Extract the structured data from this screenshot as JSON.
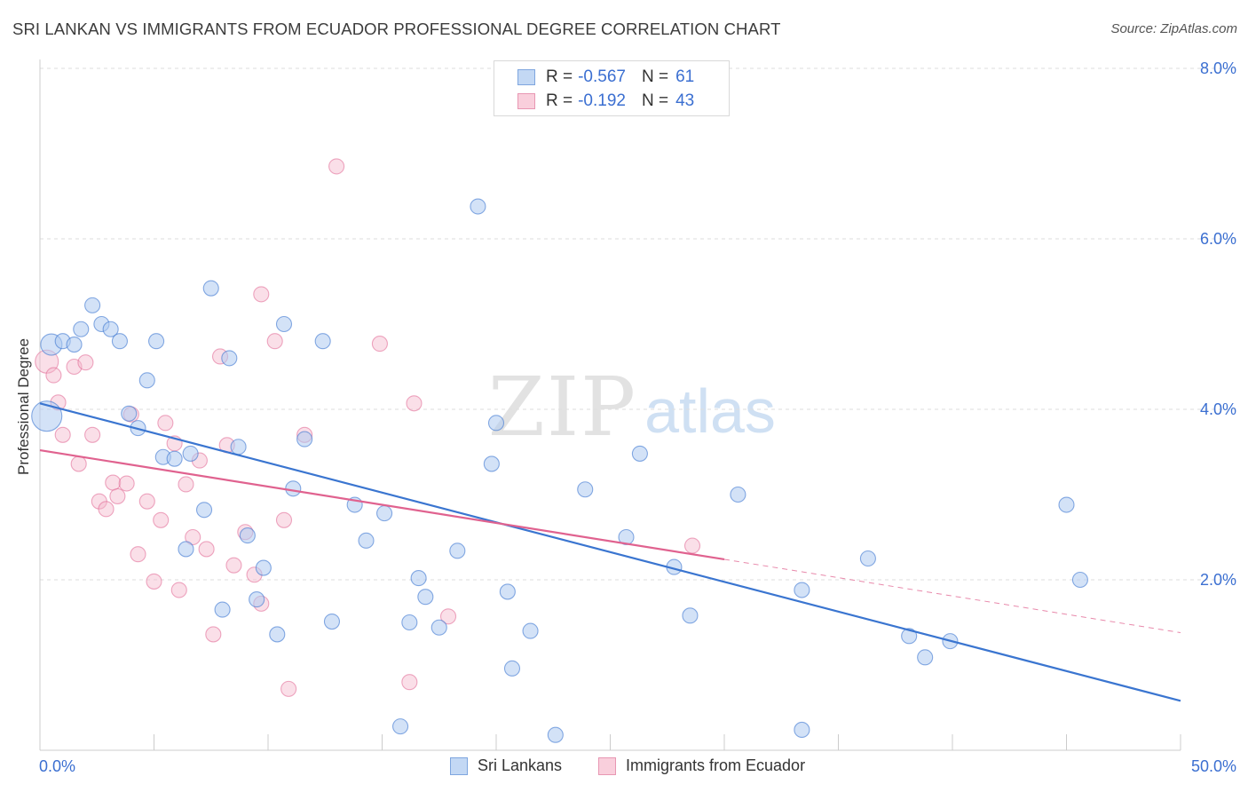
{
  "header": {
    "title": "SRI LANKAN VS IMMIGRANTS FROM ECUADOR PROFESSIONAL DEGREE CORRELATION CHART",
    "source": "Source: ZipAtlas.com"
  },
  "watermark": {
    "zip": "ZIP",
    "atlas": "atlas"
  },
  "legend": {
    "rows": [
      {
        "r_label": "R =",
        "r_value": "-0.567",
        "n_label": "N =",
        "n_value": "61"
      },
      {
        "r_label": "R =",
        "r_value": "-0.192",
        "n_label": "N =",
        "n_value": "43"
      }
    ]
  },
  "colors": {
    "blue": "#3a75d0",
    "blue_fill": "#aecbf0",
    "pink": "#e0628f",
    "pink_fill": "#f5b9cc",
    "tick_blue": "#3b6fd1",
    "grid": "#dedede"
  },
  "chart_data": {
    "type": "scatter",
    "title": "SRI LANKAN VS IMMIGRANTS FROM ECUADOR PROFESSIONAL DEGREE CORRELATION CHART",
    "xlabel": "",
    "ylabel": "Professional Degree",
    "xlim": [
      0,
      50
    ],
    "ylim": [
      0,
      8
    ],
    "x_tick_labels": [
      "0.0%",
      "50.0%"
    ],
    "y_ticks": [
      2,
      4,
      6,
      8
    ],
    "y_tick_labels": [
      "2.0%",
      "4.0%",
      "6.0%",
      "8.0%"
    ],
    "grid": true,
    "legend_position": "top-center",
    "series": [
      {
        "name": "Sri Lankans",
        "color": "#3a75d0",
        "r": -0.567,
        "n": 61,
        "trend": {
          "x": [
            0,
            50
          ],
          "y": [
            4.07,
            0.58
          ]
        },
        "points": [
          [
            0.3,
            3.92
          ],
          [
            0.5,
            4.76
          ],
          [
            1.0,
            4.8
          ],
          [
            1.5,
            4.76
          ],
          [
            1.8,
            4.94
          ],
          [
            2.3,
            5.22
          ],
          [
            2.7,
            5.0
          ],
          [
            3.1,
            4.94
          ],
          [
            3.5,
            4.8
          ],
          [
            3.9,
            3.95
          ],
          [
            4.3,
            3.78
          ],
          [
            4.7,
            4.34
          ],
          [
            5.1,
            4.8
          ],
          [
            5.4,
            3.44
          ],
          [
            5.9,
            3.42
          ],
          [
            6.4,
            2.36
          ],
          [
            6.6,
            3.48
          ],
          [
            7.2,
            2.82
          ],
          [
            7.5,
            5.42
          ],
          [
            8.0,
            1.65
          ],
          [
            8.3,
            4.6
          ],
          [
            8.7,
            3.56
          ],
          [
            9.1,
            2.52
          ],
          [
            9.5,
            1.77
          ],
          [
            9.8,
            2.14
          ],
          [
            10.4,
            1.36
          ],
          [
            10.7,
            5.0
          ],
          [
            11.1,
            3.07
          ],
          [
            11.6,
            3.65
          ],
          [
            12.4,
            4.8
          ],
          [
            12.8,
            1.51
          ],
          [
            13.8,
            2.88
          ],
          [
            14.3,
            2.46
          ],
          [
            15.1,
            2.78
          ],
          [
            15.8,
            0.28
          ],
          [
            16.2,
            1.5
          ],
          [
            16.6,
            2.02
          ],
          [
            16.9,
            1.8
          ],
          [
            17.5,
            1.44
          ],
          [
            18.3,
            2.34
          ],
          [
            19.2,
            6.38
          ],
          [
            19.8,
            3.36
          ],
          [
            20.0,
            3.84
          ],
          [
            20.5,
            1.86
          ],
          [
            20.7,
            0.96
          ],
          [
            21.5,
            1.4
          ],
          [
            22.6,
            0.18
          ],
          [
            23.9,
            3.06
          ],
          [
            25.7,
            2.5
          ],
          [
            26.3,
            3.48
          ],
          [
            27.8,
            2.15
          ],
          [
            28.5,
            1.58
          ],
          [
            30.6,
            3.0
          ],
          [
            33.4,
            0.24
          ],
          [
            33.4,
            1.88
          ],
          [
            36.3,
            2.25
          ],
          [
            38.1,
            1.34
          ],
          [
            38.8,
            1.09
          ],
          [
            39.9,
            1.28
          ],
          [
            45.0,
            2.88
          ],
          [
            45.6,
            2.0
          ]
        ]
      },
      {
        "name": "Immigrants from Ecuador",
        "color": "#e0628f",
        "r": -0.192,
        "n": 43,
        "trend": {
          "x": [
            0,
            30
          ],
          "y": [
            3.52,
            2.24
          ]
        },
        "trend_dashed": {
          "x": [
            30,
            50
          ],
          "y": [
            2.24,
            1.38
          ]
        },
        "points": [
          [
            0.3,
            4.56
          ],
          [
            0.6,
            4.4
          ],
          [
            0.8,
            4.08
          ],
          [
            1.0,
            3.7
          ],
          [
            1.5,
            4.5
          ],
          [
            1.7,
            3.36
          ],
          [
            2.0,
            4.55
          ],
          [
            2.3,
            3.7
          ],
          [
            2.6,
            2.92
          ],
          [
            2.9,
            2.83
          ],
          [
            3.2,
            3.14
          ],
          [
            3.4,
            2.98
          ],
          [
            3.8,
            3.13
          ],
          [
            4.0,
            3.94
          ],
          [
            4.3,
            2.3
          ],
          [
            4.7,
            2.92
          ],
          [
            5.0,
            1.98
          ],
          [
            5.3,
            2.7
          ],
          [
            5.5,
            3.84
          ],
          [
            5.9,
            3.6
          ],
          [
            6.1,
            1.88
          ],
          [
            6.4,
            3.12
          ],
          [
            6.7,
            2.5
          ],
          [
            7.0,
            3.4
          ],
          [
            7.3,
            2.36
          ],
          [
            7.6,
            1.36
          ],
          [
            7.9,
            4.62
          ],
          [
            8.2,
            3.58
          ],
          [
            8.5,
            2.17
          ],
          [
            9.0,
            2.56
          ],
          [
            9.4,
            2.06
          ],
          [
            9.7,
            1.72
          ],
          [
            9.7,
            5.35
          ],
          [
            10.3,
            4.8
          ],
          [
            10.7,
            2.7
          ],
          [
            10.9,
            0.72
          ],
          [
            11.6,
            3.7
          ],
          [
            13.0,
            6.85
          ],
          [
            14.9,
            4.77
          ],
          [
            16.2,
            0.8
          ],
          [
            16.4,
            4.07
          ],
          [
            17.9,
            1.57
          ],
          [
            28.6,
            2.4
          ]
        ]
      }
    ]
  },
  "bottom_legend": {
    "items": [
      "Sri Lankans",
      "Immigrants from Ecuador"
    ]
  }
}
